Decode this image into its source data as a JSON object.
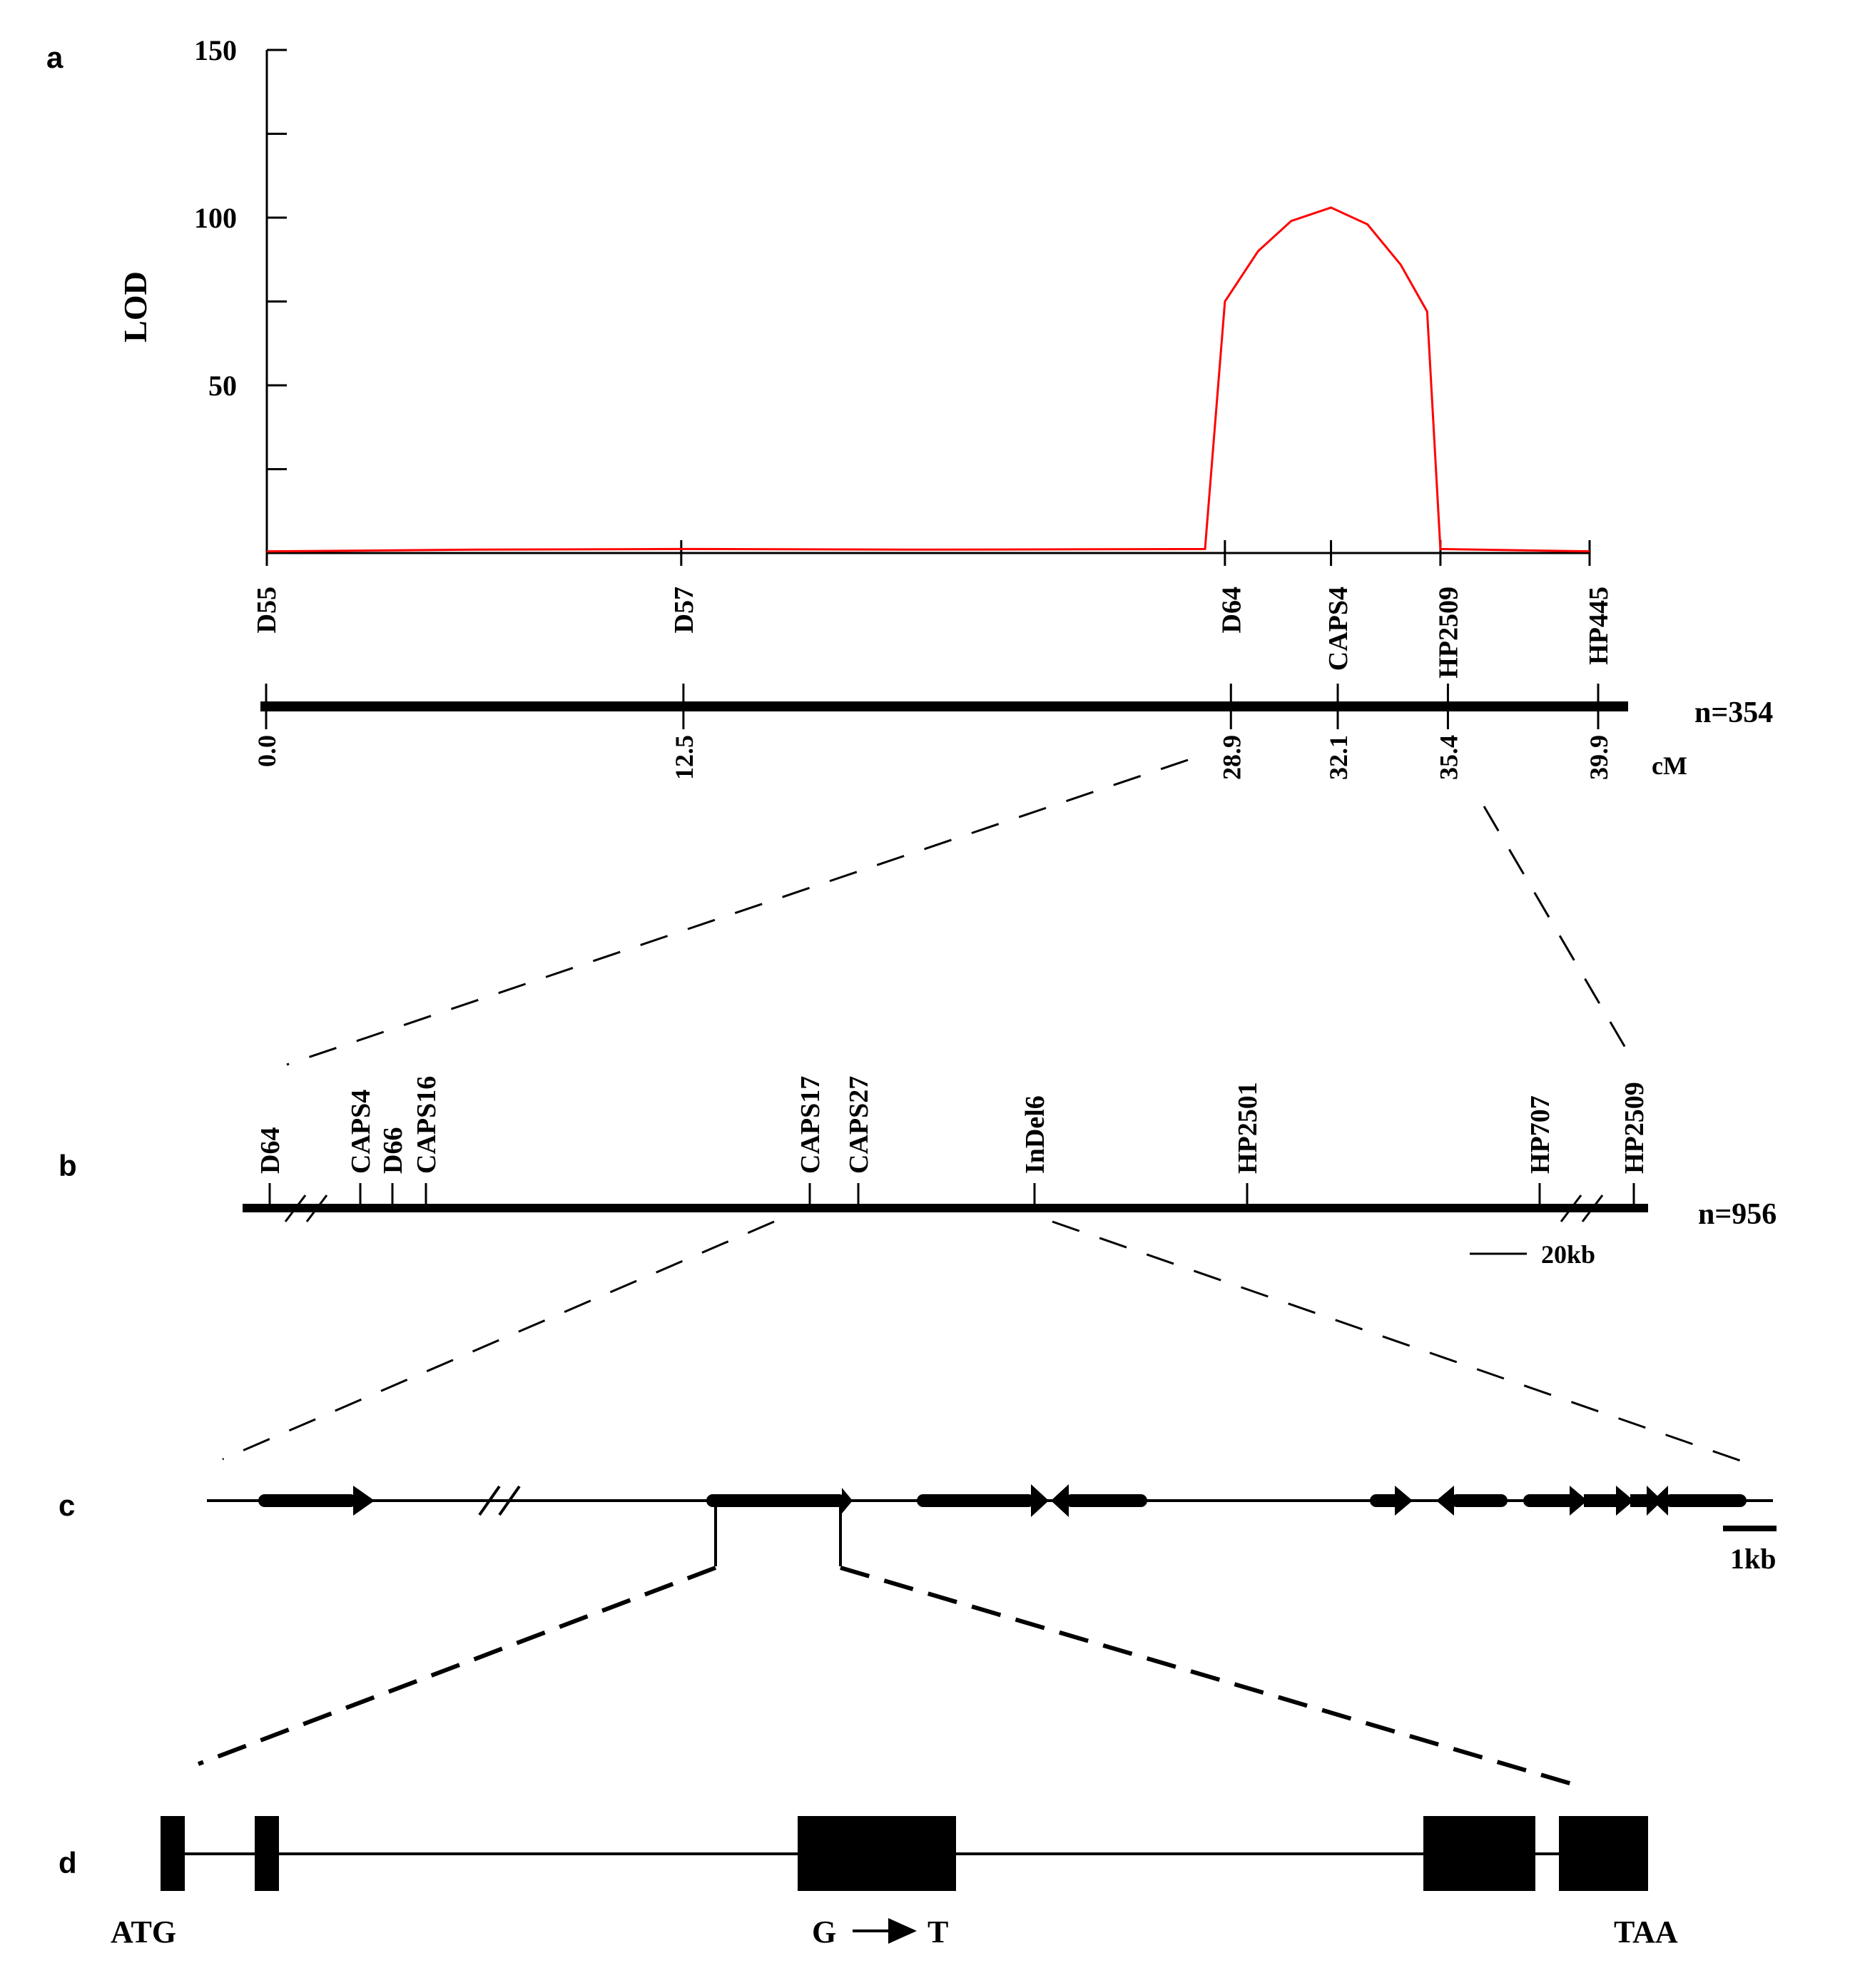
{
  "panels": {
    "a": "a",
    "b": "b",
    "c": "c",
    "d": "d"
  },
  "panel_a": {
    "y_axis_label": "LOD",
    "y_ticks": [
      {
        "value": 150,
        "label": "150"
      },
      {
        "value": 100,
        "label": "100"
      },
      {
        "value": 50,
        "label": "50"
      }
    ],
    "chart_data": {
      "type": "line",
      "title": "",
      "xlabel": "cM",
      "ylabel": "LOD",
      "xlim": [
        0,
        39.9
      ],
      "ylim": [
        0,
        150
      ],
      "series": [
        {
          "name": "LOD",
          "color": "#ff0000",
          "x": [
            0,
            6.3,
            12.5,
            20.0,
            28.3,
            28.9,
            29.9,
            30.9,
            32.1,
            33.2,
            34.2,
            35.0,
            35.4,
            39.9
          ],
          "y": [
            0.5,
            1.0,
            1.2,
            1.0,
            1.2,
            75,
            90,
            99,
            103,
            98,
            86,
            72,
            1.2,
            0.5
          ]
        }
      ]
    },
    "markers": [
      {
        "name": "D55",
        "pos": 0.0,
        "pos_label": "0.0"
      },
      {
        "name": "D57",
        "pos": 12.5,
        "pos_label": "12.5"
      },
      {
        "name": "D64",
        "pos": 28.9,
        "pos_label": "28.9"
      },
      {
        "name": "CAPS4",
        "pos": 32.1,
        "pos_label": "32.1"
      },
      {
        "name": "HP2509",
        "pos": 35.4,
        "pos_label": "35.4"
      },
      {
        "name": "HP445",
        "pos": 39.9,
        "pos_label": "39.9"
      }
    ],
    "n_label": "n=354",
    "unit_label": "cM"
  },
  "panel_b": {
    "markers": [
      "D64",
      "CAPS4",
      "D66",
      "CAPS16",
      "CAPS17",
      "CAPS27",
      "InDel6",
      "HP2501",
      "HP707",
      "HP2509"
    ],
    "n_label": "n=956",
    "scale_label": "20kb"
  },
  "panel_c": {
    "scale_label": "1kb"
  },
  "panel_d": {
    "start_label": "ATG",
    "mutation_from": "G",
    "mutation_to": "T",
    "stop_label": "TAA",
    "mutation_color": "#ff0000"
  }
}
